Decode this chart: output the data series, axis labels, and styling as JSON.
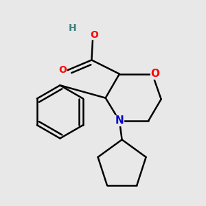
{
  "background_color": "#e8e8e8",
  "bond_color": "#000000",
  "bond_width": 1.8,
  "atom_colors": {
    "O": "#ff0000",
    "N": "#0000cc",
    "C": "#000000",
    "H": "#3a8080"
  },
  "font_size": 11,
  "figsize": [
    3.0,
    3.0
  ],
  "dpi": 100
}
